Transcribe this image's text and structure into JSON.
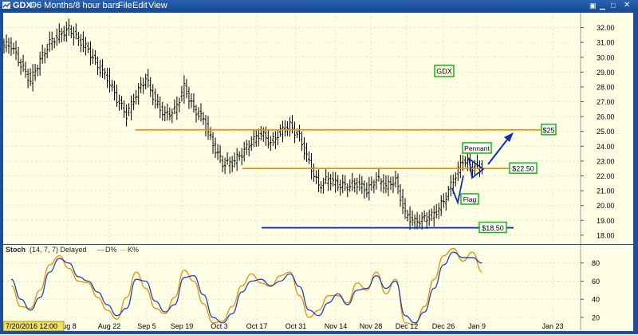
{
  "window": {
    "title": "GDX",
    "timeframe": "6 Months/8 hour bars",
    "menu": [
      "File",
      "Edit",
      "View"
    ]
  },
  "stoch_header": {
    "name": "Stoch",
    "params": "(14, 7, 7) Delayed",
    "d_label": "D%",
    "k_label": "K%"
  },
  "date_stamp": "7/20/2016 12:00",
  "colors": {
    "price_bar": "#000000",
    "orange_line": "#f08c00",
    "blue_line": "#1030b0",
    "d_line": "#2040c0",
    "k_line": "#f08c00",
    "label_border": "#14b814"
  },
  "chart_data": [
    {
      "type": "line",
      "title": "GDX",
      "ylim": [
        17.4,
        33
      ],
      "ytick_labels": [
        "18.00",
        "19.00",
        "20.00",
        "21.00",
        "22.00",
        "23.00",
        "24.00",
        "25.00",
        "26.00",
        "27.00",
        "28.00",
        "29.00",
        "30.00",
        "31.00",
        "32.00"
      ],
      "xtick_labels": [
        "Aug 8",
        "Aug 22",
        "Sep 5",
        "Sep 19",
        "Oct 3",
        "Oct 17",
        "Oct 31",
        "Nov 14",
        "Nov 28",
        "Dec 12",
        "Dec 26",
        "Jan 9",
        "Jan 23"
      ],
      "series": [
        {
          "x": [
            "Jul 21",
            "Jul 25",
            "Jul 29",
            "Aug 2",
            "Aug 5",
            "Aug 9",
            "Aug 12",
            "Aug 16",
            "Aug 19",
            "Aug 23",
            "Aug 26",
            "Aug 30",
            "Sep 2",
            "Sep 6",
            "Sep 9",
            "Sep 13",
            "Sep 16",
            "Sep 20",
            "Sep 23",
            "Sep 27",
            "Sep 30",
            "Oct 4",
            "Oct 7",
            "Oct 11",
            "Oct 14",
            "Oct 18",
            "Oct 21",
            "Oct 25",
            "Oct 28",
            "Nov 1",
            "Nov 4",
            "Nov 8",
            "Nov 11",
            "Nov 15",
            "Nov 18",
            "Nov 22",
            "Nov 25",
            "Nov 29",
            "Dec 2",
            "Dec 6",
            "Dec 9",
            "Dec 13",
            "Dec 16",
            "Dec 20",
            "Dec 23",
            "Dec 27",
            "Dec 30",
            "Jan 3",
            "Jan 6",
            "Jan 9"
          ],
          "values": [
            30.8,
            29.5,
            28.4,
            29.8,
            31.0,
            31.5,
            31.9,
            31.2,
            30.5,
            29.4,
            28.6,
            27.2,
            26.1,
            27.5,
            28.6,
            27.0,
            26.1,
            26.4,
            28.0,
            26.5,
            25.8,
            24.1,
            22.8,
            22.9,
            23.5,
            24.3,
            24.9,
            24.2,
            25.0,
            25.4,
            24.6,
            22.9,
            21.3,
            21.8,
            21.4,
            21.3,
            21.5,
            21.0,
            21.8,
            21.3,
            21.7,
            19.4,
            18.9,
            19.1,
            19.4,
            20.3,
            21.7,
            23.1,
            22.6,
            22.7
          ]
        }
      ],
      "annotations": {
        "name_label": "GDX",
        "lines": [
          {
            "label": "$25",
            "y": 25.1
          },
          {
            "label": "$22.50",
            "y": 22.5
          },
          {
            "label": "$18.50",
            "y": 18.5
          }
        ],
        "patterns": [
          "Pennant",
          "Flag"
        ]
      }
    },
    {
      "type": "line",
      "title": "Stoch",
      "ylim": [
        5,
        100
      ],
      "ytick_labels": [
        "20",
        "40",
        "60",
        "80"
      ],
      "series": [
        {
          "name": "D%",
          "values": [
            62,
            40,
            28,
            42,
            70,
            85,
            80,
            65,
            60,
            48,
            34,
            22,
            30,
            62,
            60,
            38,
            26,
            34,
            64,
            66,
            45,
            20,
            14,
            24,
            48,
            60,
            62,
            55,
            60,
            68,
            54,
            28,
            22,
            36,
            46,
            34,
            50,
            52,
            66,
            52,
            60,
            22,
            14,
            26,
            52,
            78,
            92,
            86,
            86,
            80
          ]
        },
        {
          "name": "K%",
          "values": [
            55,
            32,
            30,
            50,
            78,
            88,
            74,
            60,
            58,
            42,
            28,
            18,
            42,
            70,
            52,
            30,
            24,
            42,
            72,
            60,
            35,
            14,
            16,
            32,
            55,
            68,
            58,
            54,
            66,
            70,
            44,
            20,
            28,
            44,
            44,
            36,
            58,
            50,
            70,
            46,
            62,
            14,
            12,
            32,
            62,
            88,
            96,
            82,
            92,
            70
          ]
        }
      ]
    }
  ]
}
